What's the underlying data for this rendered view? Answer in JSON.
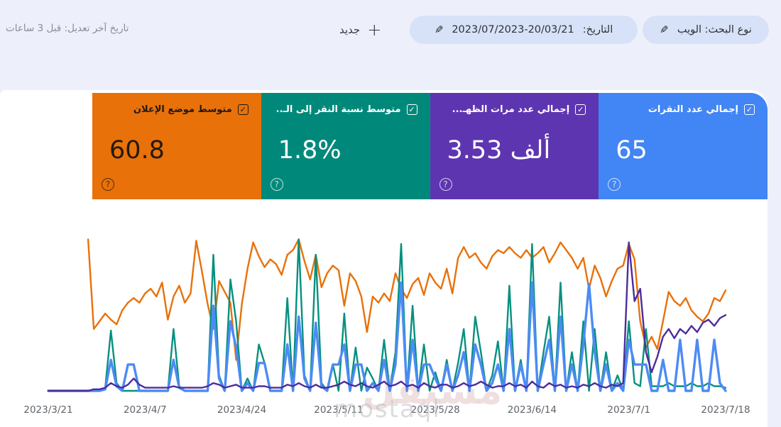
{
  "page": {
    "background": "#edf0fa",
    "card_background": "#ffffff"
  },
  "topbar": {
    "last_edit": "تاريخ آخر تعديل: قبل 3 ساعات",
    "new_button": {
      "label": "جديد"
    },
    "date_chip": {
      "label": "التاريخ:",
      "value": "2023/07/2023-20/03/21"
    },
    "search_type_chip": {
      "label": "نوع البحث: الويب"
    }
  },
  "metrics": [
    {
      "id": "clicks",
      "label": "إجمالي عدد النقرات",
      "value": "65",
      "color": "#4285f4",
      "text": "#ffffff",
      "checked": true
    },
    {
      "id": "impressions",
      "label": "إجمالي عدد مرات الظهـ...",
      "value": "3.53 ألف",
      "color": "#5e35b1",
      "text": "#ffffff",
      "checked": true
    },
    {
      "id": "ctr",
      "label": "متوسط نسبة النقر إلى الـ..",
      "value": "1.8%",
      "color": "#00897b",
      "text": "#ffffff",
      "checked": true
    },
    {
      "id": "position",
      "label": "متوسط موضع الإعلان",
      "value": "60.8",
      "color": "#e8710a",
      "text": "#211a12",
      "checked": true
    }
  ],
  "watermark": {
    "ar": "مستقل",
    "en": "mostaql"
  },
  "chart_data": {
    "type": "line",
    "title": "",
    "xlabel": "",
    "ylabel": "",
    "grid": false,
    "legend": "none (metric cards act as legend)",
    "x_labels": [
      "2023/3/21",
      "2023/4/7",
      "2023/4/24",
      "2023/5/11",
      "2023/5/28",
      "2023/6/14",
      "2023/7/1",
      "2023/7/18"
    ],
    "x_label_days": [
      0,
      17,
      34,
      51,
      68,
      85,
      102,
      119
    ],
    "days_total": 120,
    "value_unit": "percent of plot height (chart shows no y-axis; values estimated from pixels)",
    "series": [
      {
        "id": "position",
        "name": "متوسط موضع الإعلان",
        "color": "#e8710a",
        "width": 2.4,
        "values": [
          null,
          null,
          null,
          null,
          null,
          null,
          null,
          98,
          40,
          45,
          50,
          46,
          43,
          52,
          57,
          60,
          57,
          63,
          66,
          61,
          70,
          46,
          61,
          68,
          57,
          63,
          97,
          77,
          56,
          40,
          71,
          64,
          57,
          20,
          56,
          79,
          96,
          87,
          80,
          85,
          82,
          75,
          88,
          91,
          98,
          84,
          72,
          88,
          67,
          76,
          81,
          78,
          55,
          76,
          71,
          61,
          38,
          61,
          57,
          63,
          58,
          76,
          66,
          60,
          69,
          73,
          62,
          76,
          70,
          66,
          79,
          63,
          86,
          93,
          86,
          89,
          83,
          79,
          87,
          91,
          89,
          93,
          89,
          86,
          91,
          86,
          89,
          93,
          83,
          89,
          96,
          91,
          86,
          79,
          86,
          66,
          81,
          73,
          61,
          71,
          79,
          81,
          95,
          85,
          45,
          28,
          35,
          27,
          45,
          64,
          58,
          55,
          60,
          52,
          48,
          45,
          50,
          60,
          58,
          65
        ]
      },
      {
        "id": "ctr",
        "name": "متوسط نسبة النقر إلى الـ..",
        "color": "#06907e",
        "width": 2.4,
        "values": [
          0,
          0,
          0,
          0,
          0,
          0,
          0,
          0,
          0,
          0,
          2,
          39,
          5,
          0,
          0,
          0,
          0,
          0,
          0,
          0,
          0,
          0,
          40,
          3,
          0,
          0,
          0,
          0,
          0,
          88,
          10,
          0,
          72,
          45,
          0,
          8,
          0,
          30,
          18,
          0,
          0,
          0,
          60,
          0,
          98,
          10,
          0,
          88,
          5,
          0,
          17,
          0,
          50,
          0,
          28,
          0,
          15,
          8,
          0,
          33,
          0,
          25,
          95,
          0,
          55,
          0,
          30,
          0,
          12,
          0,
          20,
          0,
          18,
          40,
          0,
          48,
          25,
          0,
          10,
          32,
          0,
          68,
          0,
          20,
          0,
          95,
          0,
          25,
          48,
          0,
          70,
          0,
          25,
          0,
          45,
          0,
          40,
          0,
          25,
          0,
          10,
          0,
          45,
          5,
          3,
          40,
          3,
          3,
          3,
          5,
          3,
          3,
          3,
          5,
          3,
          3,
          5,
          3,
          3,
          2
        ]
      },
      {
        "id": "clicks",
        "name": "إجمالي عدد النقرات",
        "color": "#4c8bf5",
        "width": 3.4,
        "values": [
          0,
          0,
          0,
          0,
          0,
          0,
          0,
          0,
          0,
          0,
          1,
          20,
          3,
          0,
          17,
          17,
          0,
          0,
          0,
          0,
          0,
          0,
          20,
          2,
          0,
          0,
          0,
          0,
          0,
          55,
          8,
          0,
          45,
          28,
          0,
          5,
          0,
          18,
          18,
          0,
          0,
          0,
          30,
          0,
          48,
          8,
          0,
          44,
          3,
          0,
          17,
          17,
          30,
          0,
          17,
          17,
          0,
          5,
          0,
          20,
          0,
          17,
          70,
          0,
          33,
          0,
          17,
          17,
          8,
          0,
          17,
          0,
          10,
          25,
          0,
          30,
          17,
          0,
          5,
          17,
          0,
          40,
          0,
          17,
          0,
          70,
          0,
          17,
          33,
          0,
          48,
          0,
          17,
          0,
          30,
          69,
          25,
          0,
          17,
          0,
          5,
          0,
          33,
          17,
          17,
          17,
          0,
          0,
          20,
          0,
          0,
          33,
          0,
          0,
          33,
          0,
          0,
          33,
          5,
          0
        ]
      },
      {
        "id": "impressions",
        "name": "إجمالي عدد مرات الظهـ...",
        "color": "#4d2c9b",
        "width": 2.4,
        "values": [
          0,
          0,
          0,
          0,
          0,
          0,
          0,
          0,
          1,
          1,
          2,
          5,
          3,
          2,
          4,
          8,
          4,
          2,
          2,
          2,
          2,
          2,
          3,
          2,
          2,
          2,
          2,
          2,
          3,
          5,
          4,
          2,
          3,
          4,
          2,
          2,
          2,
          3,
          3,
          2,
          2,
          2,
          4,
          3,
          5,
          3,
          2,
          4,
          2,
          2,
          3,
          4,
          6,
          4,
          3,
          5,
          3,
          2,
          4,
          6,
          3,
          4,
          6,
          3,
          4,
          2,
          5,
          3,
          2,
          4,
          4,
          2,
          3,
          5,
          3,
          4,
          6,
          4,
          2,
          3,
          3,
          5,
          3,
          4,
          2,
          6,
          3,
          2,
          5,
          3,
          4,
          2,
          3,
          2,
          4,
          3,
          5,
          3,
          2,
          4,
          3,
          5,
          96,
          58,
          66,
          25,
          12,
          22,
          35,
          40,
          34,
          40,
          37,
          42,
          38,
          44,
          46,
          42,
          47,
          49
        ]
      }
    ]
  }
}
